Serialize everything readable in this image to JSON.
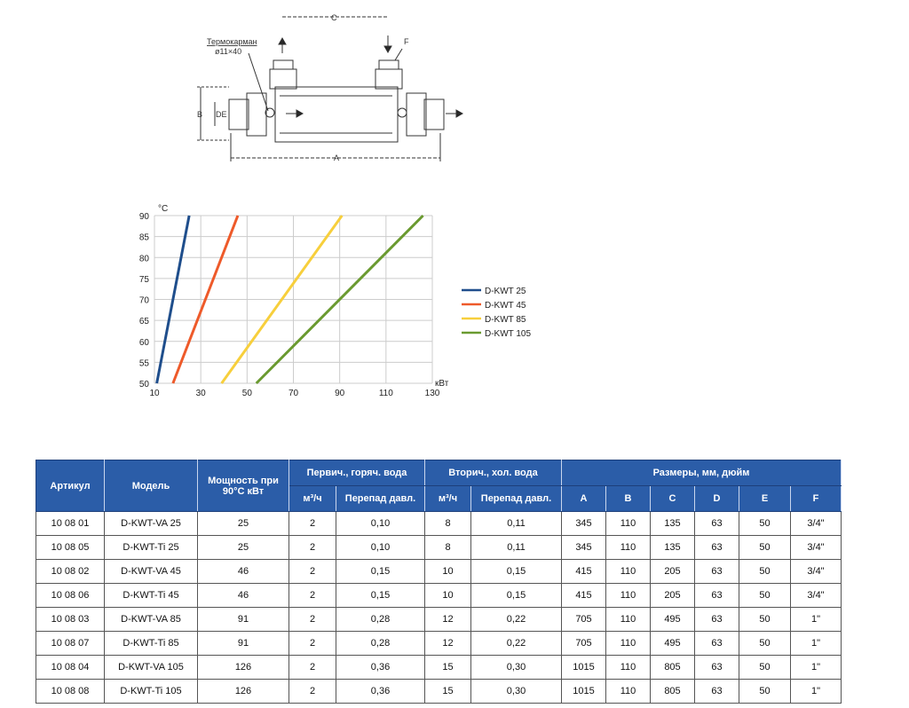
{
  "diagram": {
    "labels": {
      "thermo": "Термокарман",
      "thermo_size": "ø11×40",
      "A": "A",
      "B": "B",
      "C": "C",
      "DE": "DE",
      "F": "F"
    }
  },
  "chart_data": {
    "type": "line",
    "ylabel": "°C",
    "xlabel": "кВт",
    "xlim": [
      10,
      130
    ],
    "ylim": [
      50,
      90
    ],
    "xticks": [
      10,
      30,
      50,
      70,
      90,
      110,
      130
    ],
    "yticks": [
      50,
      55,
      60,
      65,
      70,
      75,
      80,
      85,
      90
    ],
    "grid": true,
    "legend": "right",
    "series": [
      {
        "name": "D-KWT 25",
        "color": "#1f4e8c",
        "x": [
          11,
          25
        ],
        "y": [
          50,
          90
        ]
      },
      {
        "name": "D-KWT 45",
        "color": "#ee5a2a",
        "x": [
          18,
          46
        ],
        "y": [
          50,
          90
        ]
      },
      {
        "name": "D-KWT 85",
        "color": "#f7cf3c",
        "x": [
          39,
          91
        ],
        "y": [
          50,
          90
        ]
      },
      {
        "name": "D-KWT 105",
        "color": "#6a9a30",
        "x": [
          54,
          126
        ],
        "y": [
          50,
          90
        ]
      }
    ]
  },
  "table": {
    "h": {
      "article": "Артикул",
      "model": "Модель",
      "power": "Мощность при 90°С кВт",
      "primary": "Первич., горяч. вода",
      "secondary": "Вторич., хол. вода",
      "dims": "Размеры, мм, дюйм",
      "flow": "м³/ч",
      "dp": "Перепад давл.",
      "A": "A",
      "B": "B",
      "C": "C",
      "D": "D",
      "E": "E",
      "F": "F"
    },
    "rows": [
      [
        "10 08 01",
        "D-KWT-VA 25",
        "25",
        "2",
        "0,10",
        "8",
        "0,11",
        "345",
        "110",
        "135",
        "63",
        "50",
        "3/4\""
      ],
      [
        "10 08 05",
        "D-KWT-Ti 25",
        "25",
        "2",
        "0,10",
        "8",
        "0,11",
        "345",
        "110",
        "135",
        "63",
        "50",
        "3/4\""
      ],
      [
        "10 08 02",
        "D-KWT-VA 45",
        "46",
        "2",
        "0,15",
        "10",
        "0,15",
        "415",
        "110",
        "205",
        "63",
        "50",
        "3/4\""
      ],
      [
        "10 08 06",
        "D-KWT-Ti 45",
        "46",
        "2",
        "0,15",
        "10",
        "0,15",
        "415",
        "110",
        "205",
        "63",
        "50",
        "3/4\""
      ],
      [
        "10 08 03",
        "D-KWT-VA 85",
        "91",
        "2",
        "0,28",
        "12",
        "0,22",
        "705",
        "110",
        "495",
        "63",
        "50",
        "1\""
      ],
      [
        "10 08 07",
        "D-KWT-Ti 85",
        "91",
        "2",
        "0,28",
        "12",
        "0,22",
        "705",
        "110",
        "495",
        "63",
        "50",
        "1\""
      ],
      [
        "10 08 04",
        "D-KWT-VA 105",
        "126",
        "2",
        "0,36",
        "15",
        "0,30",
        "1015",
        "110",
        "805",
        "63",
        "50",
        "1\""
      ],
      [
        "10 08 08",
        "D-KWT-Ti 105",
        "126",
        "2",
        "0,36",
        "15",
        "0,30",
        "1015",
        "110",
        "805",
        "63",
        "50",
        "1\""
      ]
    ]
  }
}
